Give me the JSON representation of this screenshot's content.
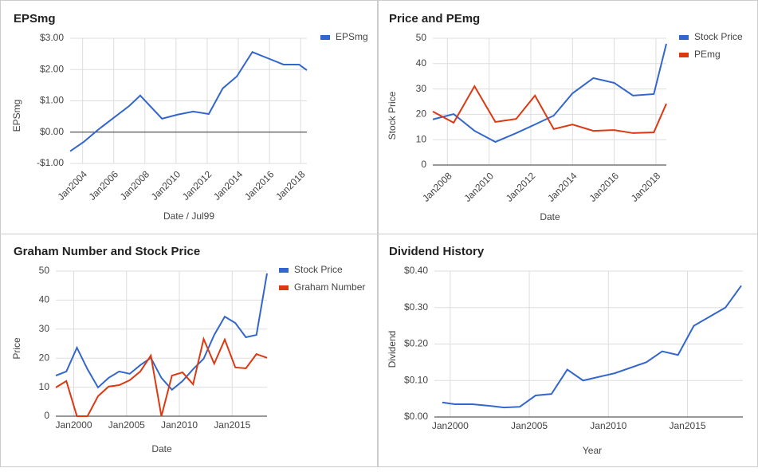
{
  "chart_data": [
    {
      "type": "line",
      "title": "EPSmg",
      "x_label": "Date / Jul99",
      "y_label": "EPSmg",
      "legend": "right",
      "grid": true,
      "x": [
        2003.2,
        2004.1,
        2005.0,
        2006.0,
        2007.0,
        2007.7,
        2009.1,
        2010.1,
        2011.1,
        2012.1,
        2013.0,
        2013.9,
        2014.9,
        2015.9,
        2016.9,
        2017.9,
        2018.4
      ],
      "series": [
        {
          "name": "EPSmg",
          "color": "#3366cc",
          "values": [
            -0.61,
            -0.3,
            0.08,
            0.46,
            0.84,
            1.17,
            0.43,
            0.56,
            0.66,
            0.58,
            1.4,
            1.78,
            2.56,
            2.36,
            2.16,
            2.16,
            1.98
          ]
        }
      ],
      "xlim": [
        2003.2,
        2018.4
      ],
      "xticks": [
        {
          "value": 2004,
          "label": "Jan2004"
        },
        {
          "value": 2006,
          "label": "Jan2006"
        },
        {
          "value": 2008,
          "label": "Jan2008"
        },
        {
          "value": 2010,
          "label": "Jan2010"
        },
        {
          "value": 2012,
          "label": "Jan2012"
        },
        {
          "value": 2014,
          "label": "Jan2014"
        },
        {
          "value": 2016,
          "label": "Jan2016"
        },
        {
          "value": 2018,
          "label": "Jan2018"
        }
      ],
      "ylim": [
        -1,
        3
      ],
      "yticks": [
        {
          "value": -1,
          "label": "-$1.00"
        },
        {
          "value": 0,
          "label": "$0.00"
        },
        {
          "value": 1,
          "label": "$1.00"
        },
        {
          "value": 2,
          "label": "$2.00"
        },
        {
          "value": 3,
          "label": "$3.00"
        }
      ]
    },
    {
      "type": "line",
      "title": "Price and PEmg",
      "x_label": "Date",
      "y_label": "Stock Price",
      "legend": "right",
      "grid": true,
      "x": [
        2007.3,
        2008.3,
        2009.3,
        2010.3,
        2011.3,
        2012.2,
        2013.1,
        2014.0,
        2015.0,
        2016.0,
        2016.9,
        2017.9,
        2018.5
      ],
      "series": [
        {
          "name": "Stock Price",
          "color": "#3366cc",
          "values": [
            18.0,
            20.1,
            13.5,
            9.1,
            12.6,
            16.0,
            19.5,
            28.3,
            34.3,
            32.4,
            27.4,
            28.0,
            47.8
          ]
        },
        {
          "name": "PEmg",
          "color": "#dc3912",
          "values": [
            21.1,
            16.7,
            31.1,
            17.0,
            18.2,
            27.4,
            14.2,
            16.0,
            13.5,
            13.8,
            12.6,
            12.9,
            24.2
          ]
        }
      ],
      "xlim": [
        2007.3,
        2018.5
      ],
      "xticks": [
        {
          "value": 2008,
          "label": "Jan2008"
        },
        {
          "value": 2010,
          "label": "Jan2010"
        },
        {
          "value": 2012,
          "label": "Jan2012"
        },
        {
          "value": 2014,
          "label": "Jan2014"
        },
        {
          "value": 2016,
          "label": "Jan2016"
        },
        {
          "value": 2018,
          "label": "Jan2018"
        }
      ],
      "ylim": [
        0,
        50
      ],
      "yticks": [
        0,
        10,
        20,
        30,
        40,
        50
      ]
    },
    {
      "type": "line",
      "title": "Graham Number and Stock Price",
      "x_label": "Date",
      "y_label": "Price",
      "legend": "right",
      "grid": true,
      "x": [
        1998.3,
        1999.3,
        2000.3,
        2001.3,
        2002.3,
        2003.3,
        2004.3,
        2005.3,
        2006.3,
        2007.3,
        2008.3,
        2009.3,
        2010.3,
        2011.3,
        2012.3,
        2013.3,
        2014.3,
        2015.3,
        2016.3,
        2017.3,
        2018.3
      ],
      "series": [
        {
          "name": "Stock Price",
          "color": "#3366cc",
          "values": [
            14.0,
            15.4,
            23.6,
            16.2,
            9.9,
            13.2,
            15.4,
            14.6,
            17.6,
            20.1,
            13.2,
            9.1,
            12.1,
            16.2,
            19.8,
            28.0,
            34.3,
            32.1,
            27.2,
            28.0,
            49.2
          ]
        },
        {
          "name": "Graham Number",
          "color": "#dc3912",
          "values": [
            9.9,
            12.1,
            0,
            0,
            6.9,
            10.2,
            10.7,
            12.4,
            15.4,
            20.9,
            0,
            14.0,
            15.1,
            11.0,
            26.6,
            18.1,
            26.4,
            16.8,
            16.5,
            21.4,
            20.1
          ]
        }
      ],
      "xlim": [
        1998.3,
        2018.3
      ],
      "xticks": [
        {
          "value": 2000,
          "label": "Jan2000"
        },
        {
          "value": 2005,
          "label": "Jan2005"
        },
        {
          "value": 2010,
          "label": "Jan2010"
        },
        {
          "value": 2015,
          "label": "Jan2015"
        }
      ],
      "ylim": [
        0,
        50
      ],
      "yticks": [
        0,
        10,
        20,
        30,
        40,
        50
      ]
    },
    {
      "type": "line",
      "title": "Dividend History",
      "x_label": "Year",
      "y_label": "Dividend",
      "grid": true,
      "x": [
        1999.5,
        2000.3,
        2001.4,
        2002.4,
        2003.4,
        2004.4,
        2005.4,
        2006.4,
        2007.4,
        2008.4,
        2010.4,
        2012.4,
        2013.4,
        2014.4,
        2015.4,
        2017.4,
        2018.4
      ],
      "series": [
        {
          "name": "Dividend",
          "color": "#3366cc",
          "values": [
            0.04,
            0.035,
            0.035,
            0.031,
            0.026,
            0.028,
            0.059,
            0.063,
            0.13,
            0.1,
            0.12,
            0.15,
            0.18,
            0.17,
            0.25,
            0.3,
            0.36
          ]
        }
      ],
      "xlim": [
        1999.0,
        2018.5
      ],
      "xticks": [
        {
          "value": 2000,
          "label": "Jan2000"
        },
        {
          "value": 2005,
          "label": "Jan2005"
        },
        {
          "value": 2010,
          "label": "Jan2010"
        },
        {
          "value": 2015,
          "label": "Jan2015"
        }
      ],
      "ylim": [
        0,
        0.4
      ],
      "yticks": [
        {
          "value": 0,
          "label": "$0.00"
        },
        {
          "value": 0.1,
          "label": "$0.10"
        },
        {
          "value": 0.2,
          "label": "$0.20"
        },
        {
          "value": 0.3,
          "label": "$0.30"
        },
        {
          "value": 0.4,
          "label": "$0.40"
        }
      ]
    }
  ]
}
